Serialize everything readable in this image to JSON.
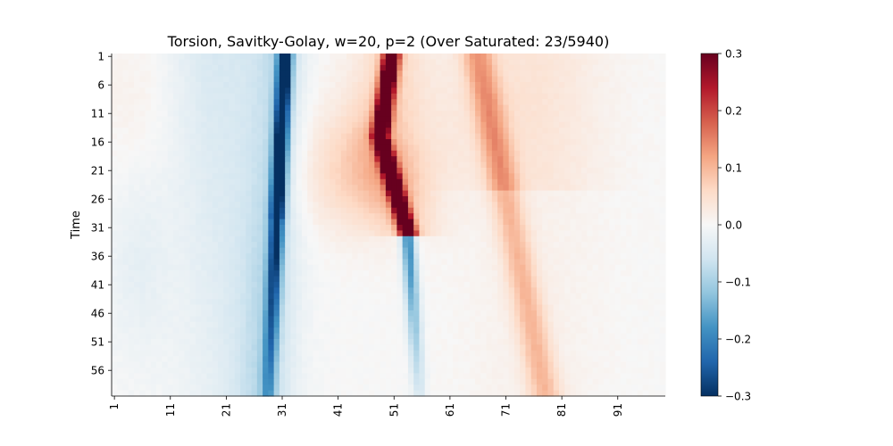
{
  "chart_data": {
    "type": "heatmap",
    "title": "Torsion, Savitky-Golay, w=20, p=2 (Over Saturated: 23/5940)",
    "xlabel": "",
    "ylabel": "Time",
    "n_rows": 60,
    "n_cols": 99,
    "x_ticklabels": [
      "1",
      "11",
      "21",
      "31",
      "41",
      "51",
      "61",
      "71",
      "81",
      "91"
    ],
    "y_ticklabels": [
      "1",
      "6",
      "11",
      "16",
      "21",
      "26",
      "31",
      "36",
      "41",
      "46",
      "51",
      "56"
    ],
    "colorbar": {
      "colormap": "RdBu_r",
      "vmin": -0.3,
      "vmax": 0.3,
      "ticks": [
        0.3,
        0.2,
        0.1,
        0.0,
        -0.1,
        -0.2,
        -0.3
      ],
      "ticklabels": [
        "0.3",
        "0.2",
        "0.1",
        "0.0",
        "−0.1",
        "−0.2",
        "−0.3"
      ]
    },
    "features": [
      {
        "name": "negative band (blue)",
        "col_at_row1": 31.5,
        "col_at_row60": 28.5,
        "peak_value": -0.35,
        "rows": [
          1,
          60
        ]
      },
      {
        "name": "positive band (red)",
        "col_at_row1": 50.5,
        "col_at_row30": 53.5,
        "peak_value": 0.4,
        "rows": [
          1,
          32
        ]
      },
      {
        "name": "negative band (blue) lower",
        "col_at_row33": 54,
        "col_at_row60": 55.5,
        "peak_value": -0.2,
        "rows": [
          33,
          60
        ]
      },
      {
        "name": "positive band (light red)",
        "col_at_row1": 66,
        "col_at_row60": 78,
        "peak_value": 0.12,
        "rows": [
          1,
          60
        ]
      },
      {
        "name": "broad negative region",
        "col_center": 20,
        "peak_value": -0.05,
        "rows": [
          1,
          60
        ]
      },
      {
        "name": "broad positive region",
        "col_center": 45,
        "peak_value": 0.06,
        "rows": [
          14,
          30
        ]
      }
    ]
  },
  "colors": {
    "background": "#ffffff",
    "axis": "#000000",
    "neutral": "#f7f7f7"
  }
}
